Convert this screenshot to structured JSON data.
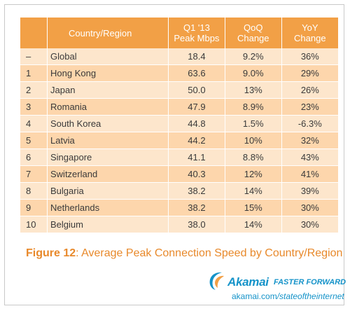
{
  "table": {
    "headers": {
      "rank": "",
      "country": "Country/Region",
      "peak_line1": "Q1 '13",
      "peak_line2": "Peak Mbps",
      "qoq_line1": "QoQ",
      "qoq_line2": "Change",
      "yoy_line1": "YoY",
      "yoy_line2": "Change"
    },
    "rows": [
      {
        "rank": "–",
        "country": "Global",
        "peak": "18.4",
        "qoq": "9.2%",
        "yoy": "36%"
      },
      {
        "rank": "1",
        "country": "Hong Kong",
        "peak": "63.6",
        "qoq": "9.0%",
        "yoy": "29%"
      },
      {
        "rank": "2",
        "country": "Japan",
        "peak": "50.0",
        "qoq": "13%",
        "yoy": "26%"
      },
      {
        "rank": "3",
        "country": "Romania",
        "peak": "47.9",
        "qoq": "8.9%",
        "yoy": "23%"
      },
      {
        "rank": "4",
        "country": "South Korea",
        "peak": "44.8",
        "qoq": "1.5%",
        "yoy": "-6.3%"
      },
      {
        "rank": "5",
        "country": "Latvia",
        "peak": "44.2",
        "qoq": "10%",
        "yoy": "32%"
      },
      {
        "rank": "6",
        "country": "Singapore",
        "peak": "41.1",
        "qoq": "8.8%",
        "yoy": "43%"
      },
      {
        "rank": "7",
        "country": "Switzerland",
        "peak": "40.3",
        "qoq": "12%",
        "yoy": "41%"
      },
      {
        "rank": "8",
        "country": "Bulgaria",
        "peak": "38.2",
        "qoq": "14%",
        "yoy": "39%"
      },
      {
        "rank": "9",
        "country": "Netherlands",
        "peak": "38.2",
        "qoq": "15%",
        "yoy": "30%"
      },
      {
        "rank": "10",
        "country": "Belgium",
        "peak": "38.0",
        "qoq": "14%",
        "yoy": "30%"
      }
    ]
  },
  "caption": {
    "label": "Figure 12",
    "text": ": Average Peak Connection Speed by Country/Region"
  },
  "branding": {
    "logo_text": "Akamai",
    "logo_icon": "akamai-swoosh-icon",
    "tagline": "FASTER FORWARD",
    "url_domain": "akamai.com",
    "url_path": "/stateoftheinternet"
  },
  "colors": {
    "header_orange": "#f2a046",
    "row_light": "#fde6cc",
    "row_dark": "#fdd6ac",
    "caption_orange": "#e8892b",
    "brand_blue": "#1593c9"
  }
}
